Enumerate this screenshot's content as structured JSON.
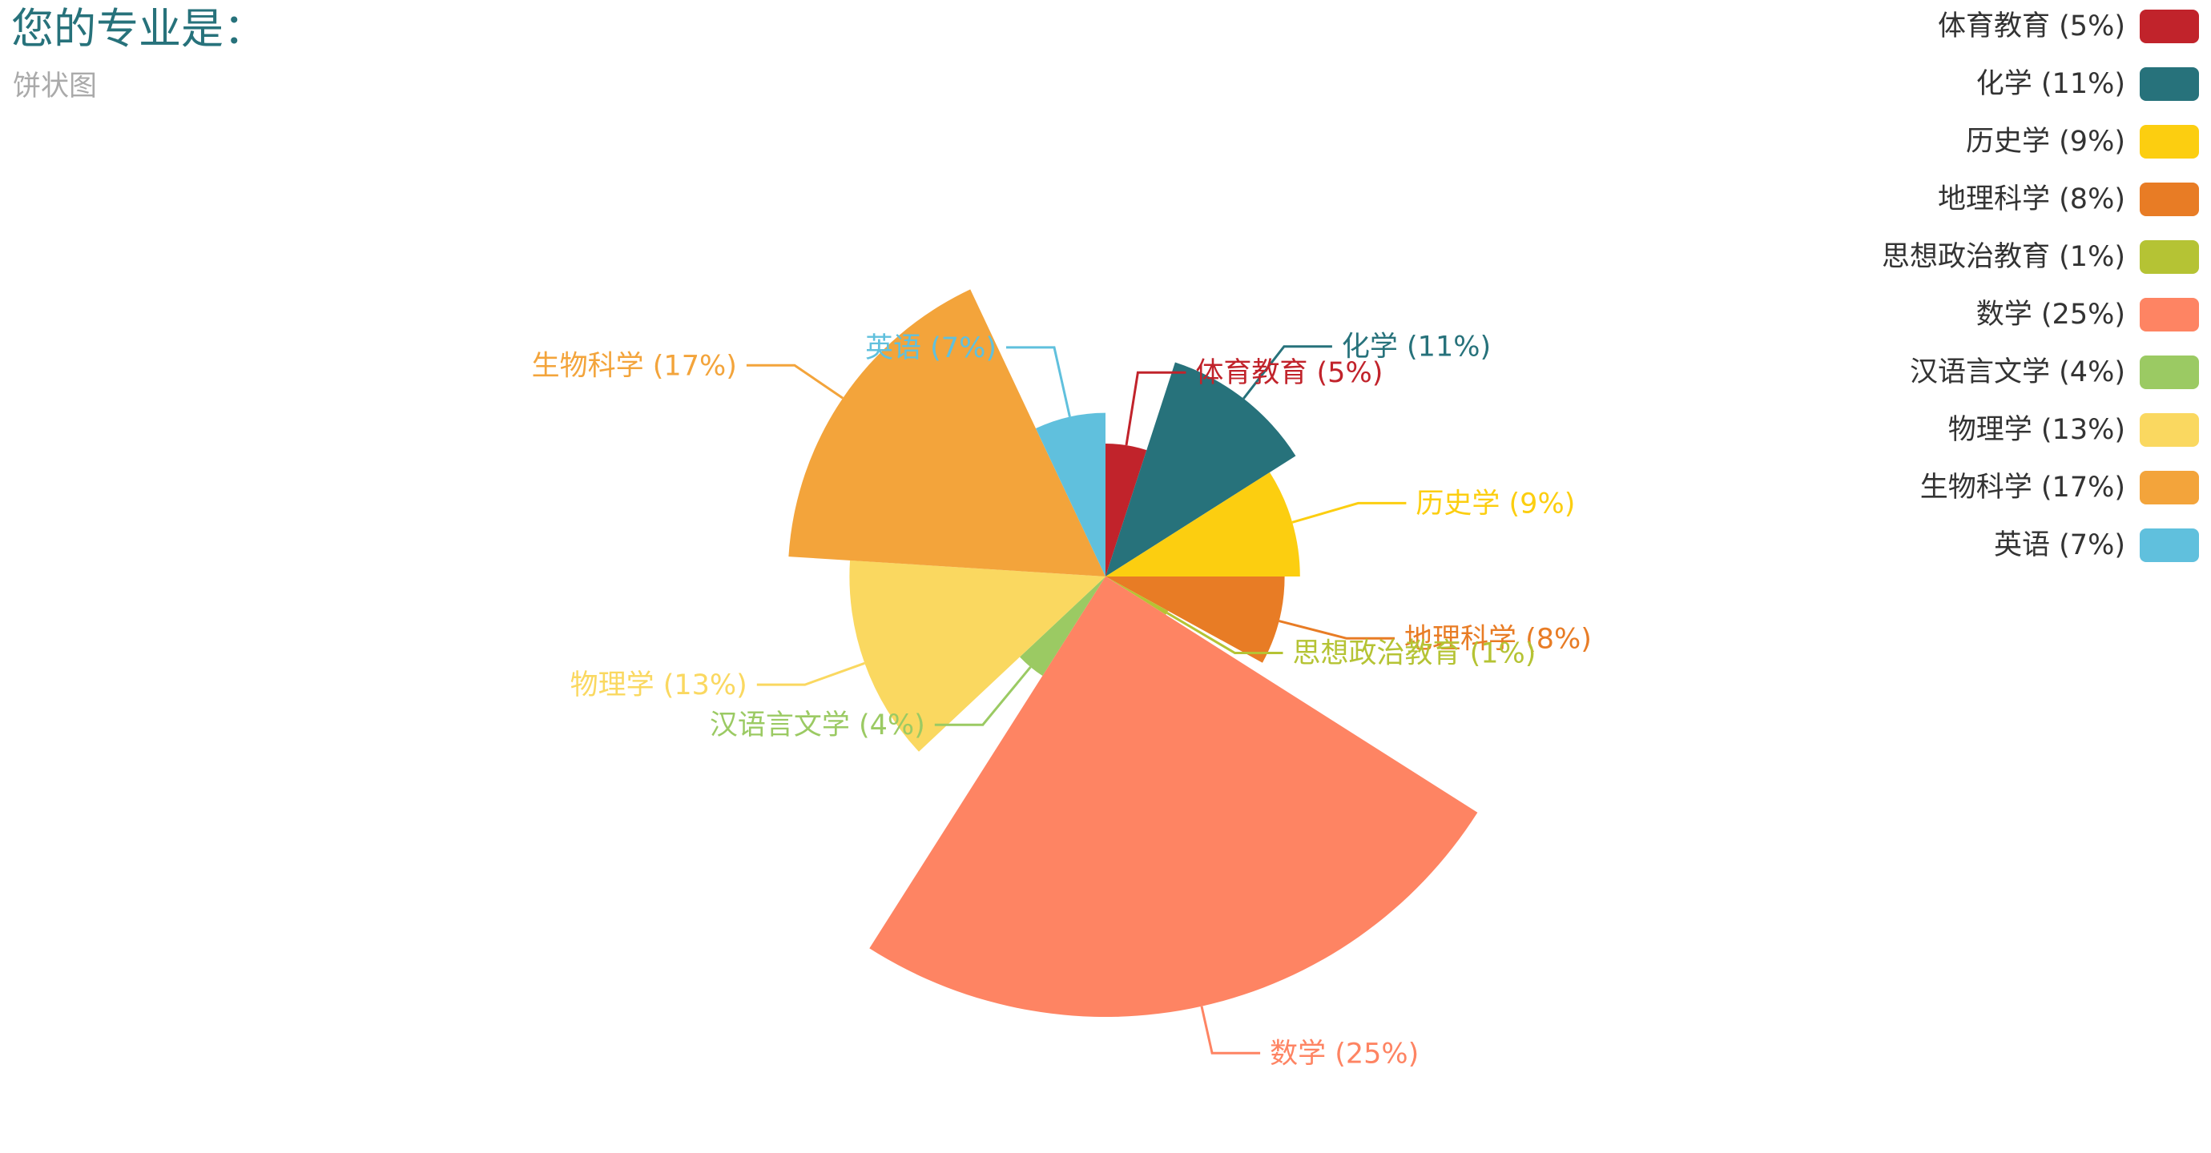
{
  "title": "您的专业是：",
  "subtitle": "饼状图",
  "chart_data": {
    "type": "pie",
    "variant": "rose-radius",
    "legend_position": "top-right",
    "categories": [
      "体育教育",
      "化学",
      "历史学",
      "地理科学",
      "思想政治教育",
      "数学",
      "汉语言文学",
      "物理学",
      "生物科学",
      "英语"
    ],
    "values": [
      5,
      11,
      9,
      8,
      1,
      25,
      4,
      13,
      17,
      7
    ],
    "labels": [
      "体育教育 (5%)",
      "化学 (11%)",
      "历史学 (9%)",
      "地理科学 (8%)",
      "思想政治教育 (1%)",
      "数学 (25%)",
      "汉语言文学 (4%)",
      "物理学 (13%)",
      "生物科学 (17%)",
      "英语 (7%)"
    ],
    "colors": [
      "#c1232b",
      "#27727b",
      "#fcce10",
      "#e87c25",
      "#b5c334",
      "#fe8463",
      "#9bca63",
      "#fad860",
      "#f3a43b",
      "#60c0dd"
    ]
  }
}
